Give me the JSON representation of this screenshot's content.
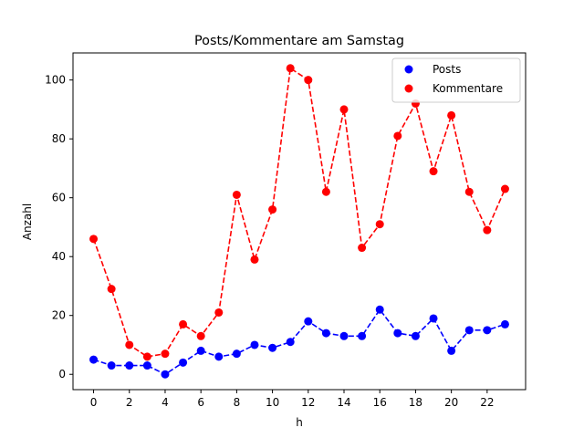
{
  "chart_data": {
    "type": "line",
    "title": "Posts/Kommentare am Samstag",
    "xlabel": "h",
    "ylabel": "Anzahl",
    "x": [
      0,
      1,
      2,
      3,
      4,
      5,
      6,
      7,
      8,
      9,
      10,
      11,
      12,
      13,
      14,
      15,
      16,
      17,
      18,
      19,
      20,
      21,
      22,
      23
    ],
    "xlim": [
      -1.15,
      24.15
    ],
    "ylim": [
      -5.2,
      109.2
    ],
    "xticks": [
      0,
      2,
      4,
      6,
      8,
      10,
      12,
      14,
      16,
      18,
      20,
      22
    ],
    "yticks": [
      0,
      20,
      40,
      60,
      80,
      100
    ],
    "grid": false,
    "legend_position": "top-right",
    "series": [
      {
        "name": "Posts",
        "color": "#0000ff",
        "linestyle": "dashed",
        "marker": "circle",
        "values": [
          5,
          3,
          3,
          3,
          0,
          4,
          8,
          6,
          7,
          10,
          9,
          11,
          18,
          14,
          13,
          13,
          22,
          14,
          13,
          19,
          8,
          15,
          15,
          17
        ]
      },
      {
        "name": "Kommentare",
        "color": "#ff0000",
        "linestyle": "dashed",
        "marker": "circle",
        "values": [
          46,
          29,
          10,
          6,
          7,
          17,
          13,
          21,
          61,
          39,
          56,
          104,
          100,
          62,
          90,
          43,
          51,
          81,
          92,
          69,
          88,
          62,
          49,
          63
        ]
      }
    ]
  }
}
